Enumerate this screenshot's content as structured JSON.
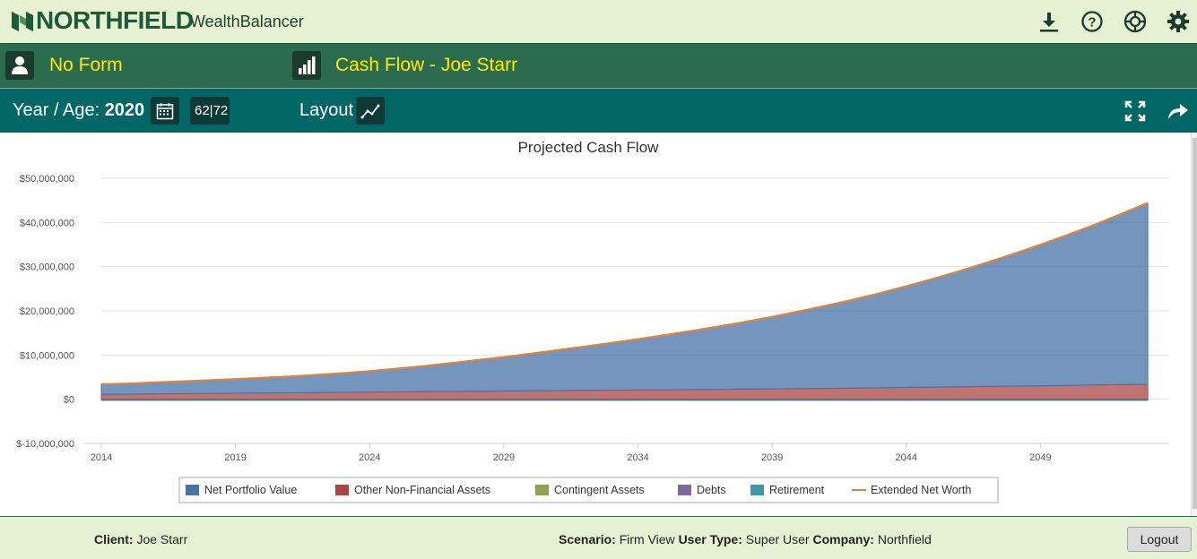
{
  "header": {
    "brand": "NORTHFIELD",
    "product": "WealthBalancer",
    "icons": [
      "download-icon",
      "help-icon",
      "lifebuoy-icon",
      "gear-icon"
    ]
  },
  "form_bar": {
    "form_label": "No Form",
    "report_title": "Cash Flow - Joe Starr",
    "colors": {
      "text": "#ffea00"
    }
  },
  "control_bar": {
    "year_age_label": "Year / Age:",
    "year_value": "2020",
    "age_value": "62|72",
    "layout_label": "Layout"
  },
  "chart_data": {
    "type": "area",
    "title": "Projected Cash Flow",
    "x": [
      2014,
      2015,
      2016,
      2017,
      2018,
      2019,
      2020,
      2021,
      2022,
      2023,
      2024,
      2025,
      2026,
      2027,
      2028,
      2029,
      2030,
      2031,
      2032,
      2033,
      2034,
      2035,
      2036,
      2037,
      2038,
      2039,
      2040,
      2041,
      2042,
      2043,
      2044,
      2045,
      2046,
      2047,
      2048,
      2049,
      2050,
      2051,
      2052,
      2053
    ],
    "xticks": [
      2014,
      2019,
      2024,
      2029,
      2034,
      2039,
      2044,
      2049
    ],
    "ylim": [
      -10000000,
      50000000
    ],
    "yticks": [
      -10000000,
      0,
      10000000,
      20000000,
      30000000,
      40000000,
      50000000
    ],
    "ytick_labels": [
      "$-10,000,000",
      "$0",
      "$10,000,000",
      "$20,000,000",
      "$30,000,000",
      "$40,000,000",
      "$50,000,000"
    ],
    "xtick_labels": [
      "2014",
      "2019",
      "2024",
      "2029",
      "2034",
      "2039",
      "2044",
      "2049"
    ],
    "grid": true,
    "legend_position": "bottom",
    "series": [
      {
        "name": "Net Portfolio Value",
        "color": "#4572a7",
        "kind": "area",
        "values": [
          2300000,
          2400000,
          2600000,
          2800000,
          3000000,
          3200000,
          3450000,
          3700000,
          4000000,
          4350000,
          4750000,
          5250000,
          5800000,
          6400000,
          7050000,
          7700000,
          8400000,
          9150000,
          9900000,
          10700000,
          11500000,
          12350000,
          13250000,
          14200000,
          15200000,
          16300000,
          17450000,
          18700000,
          20000000,
          21400000,
          22900000,
          24500000,
          26200000,
          28000000,
          29900000,
          31900000,
          34000000,
          36200000,
          38600000,
          41000000
        ]
      },
      {
        "name": "Other Non-Financial Assets",
        "color": "#aa4643",
        "kind": "area",
        "values": [
          1100000,
          1150000,
          1200000,
          1250000,
          1300000,
          1350000,
          1400000,
          1450000,
          1500000,
          1550000,
          1600000,
          1650000,
          1700000,
          1750000,
          1800000,
          1850000,
          1900000,
          1950000,
          2000000,
          2050000,
          2100000,
          2150000,
          2200000,
          2250000,
          2300000,
          2350000,
          2400000,
          2450000,
          2500000,
          2580000,
          2660000,
          2740000,
          2820000,
          2900000,
          2980000,
          3060000,
          3140000,
          3220000,
          3300000,
          3380000
        ]
      },
      {
        "name": "Contingent Assets",
        "color": "#89a54e",
        "kind": "area",
        "values": [
          0,
          0,
          0,
          0,
          0,
          0,
          0,
          0,
          0,
          0,
          0,
          0,
          0,
          0,
          0,
          0,
          0,
          0,
          0,
          0,
          0,
          0,
          0,
          0,
          0,
          0,
          0,
          0,
          0,
          0,
          0,
          0,
          0,
          0,
          0,
          0,
          0,
          0,
          0,
          0
        ]
      },
      {
        "name": "Debts",
        "color": "#80699b",
        "kind": "area",
        "values": [
          -200000,
          -200000,
          -200000,
          -200000,
          -200000,
          -200000,
          -200000,
          -200000,
          -200000,
          -200000,
          -200000,
          -200000,
          -200000,
          -200000,
          -200000,
          -200000,
          -200000,
          -200000,
          -200000,
          -200000,
          -200000,
          -200000,
          -200000,
          -200000,
          -200000,
          -200000,
          -200000,
          -200000,
          -200000,
          -200000,
          -200000,
          -200000,
          -200000,
          -200000,
          -200000,
          -200000,
          -200000,
          -200000,
          -200000,
          -200000
        ]
      },
      {
        "name": "Retirement",
        "color": "#3d96ae",
        "kind": "area",
        "values": [
          0,
          0,
          0,
          0,
          0,
          0,
          0,
          0,
          0,
          0,
          0,
          0,
          0,
          0,
          0,
          0,
          0,
          0,
          0,
          0,
          0,
          0,
          0,
          0,
          0,
          0,
          0,
          0,
          0,
          0,
          0,
          0,
          0,
          0,
          0,
          0,
          0,
          0,
          0,
          0
        ]
      },
      {
        "name": "Extended Net Worth",
        "color": "#db843d",
        "kind": "line",
        "values": [
          3400000,
          3550000,
          3800000,
          4050000,
          4300000,
          4550000,
          4850000,
          5150000,
          5500000,
          5900000,
          6350000,
          6900000,
          7500000,
          8150000,
          8850000,
          9550000,
          10300000,
          11100000,
          11900000,
          12750000,
          13600000,
          14500000,
          15450000,
          16450000,
          17500000,
          18650000,
          19850000,
          21150000,
          22500000,
          23980000,
          25560000,
          27240000,
          29020000,
          30900000,
          32880000,
          34960000,
          37140000,
          39420000,
          41900000,
          44400000
        ]
      }
    ]
  },
  "footer": {
    "client_label": "Client:",
    "client_value": "Joe Starr",
    "scenario_label": "Scenario:",
    "scenario_value": "Firm View",
    "user_type_label": "User Type:",
    "user_type_value": "Super User",
    "company_label": "Company:",
    "company_value": "Northfield",
    "logout_label": "Logout"
  }
}
